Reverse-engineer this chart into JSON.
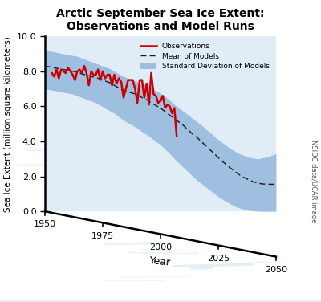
{
  "title_line1": "Arctic September Sea Ice Extent:",
  "title_line2": "Observations and Model Runs",
  "xlabel": "Year",
  "ylabel": "Sea Ice Extent (million square kilometers)",
  "xlim": [
    1950,
    2050
  ],
  "ylim": [
    0.0,
    10.0
  ],
  "yticks": [
    0.0,
    2.0,
    4.0,
    6.0,
    8.0,
    10.0
  ],
  "xticks": [
    1950,
    1975,
    2000,
    2025,
    2050
  ],
  "obs_color": "#cc0000",
  "model_mean_color": "#1a1a1a",
  "model_std_color": "#7ba7d4",
  "model_std_alpha": 0.65,
  "bg_top_color": "#e8f4fc",
  "bg_bottom_color": "#f5faff",
  "watermark_text": "NSIDC data/UCAR image",
  "legend_labels": [
    "Observations",
    "Mean of Models",
    "Standard Deviation of Models"
  ],
  "obs_years": [
    1953,
    1954,
    1955,
    1956,
    1957,
    1958,
    1959,
    1960,
    1961,
    1962,
    1963,
    1964,
    1965,
    1966,
    1967,
    1968,
    1969,
    1970,
    1971,
    1972,
    1973,
    1974,
    1975,
    1976,
    1977,
    1978,
    1979,
    1980,
    1981,
    1982,
    1983,
    1984,
    1985,
    1986,
    1987,
    1988,
    1989,
    1990,
    1991,
    1992,
    1993,
    1994,
    1995,
    1996,
    1997,
    1998,
    1999,
    2000,
    2001,
    2002,
    2003,
    2004,
    2005,
    2006,
    2007
  ],
  "obs_values": [
    7.9,
    7.7,
    8.1,
    7.6,
    8.1,
    8.0,
    7.9,
    8.2,
    8.0,
    7.8,
    7.5,
    8.0,
    8.1,
    7.9,
    8.3,
    7.9,
    7.2,
    8.0,
    7.8,
    7.8,
    8.1,
    7.5,
    8.0,
    7.6,
    7.8,
    7.8,
    7.2,
    7.8,
    7.3,
    7.6,
    7.4,
    6.5,
    7.0,
    7.5,
    7.5,
    7.5,
    7.0,
    6.2,
    7.5,
    7.5,
    6.5,
    7.3,
    6.1,
    7.9,
    6.7,
    6.6,
    6.2,
    6.3,
    6.6,
    5.9,
    6.1,
    6.0,
    5.6,
    5.9,
    4.3
  ],
  "model_years": [
    1950,
    1952,
    1954,
    1956,
    1958,
    1960,
    1962,
    1964,
    1966,
    1968,
    1970,
    1972,
    1974,
    1976,
    1978,
    1980,
    1982,
    1984,
    1986,
    1988,
    1990,
    1992,
    1994,
    1996,
    1998,
    2000,
    2002,
    2004,
    2006,
    2008,
    2010,
    2012,
    2014,
    2016,
    2018,
    2020,
    2022,
    2024,
    2026,
    2028,
    2030,
    2032,
    2034,
    2036,
    2038,
    2040,
    2042,
    2044,
    2046,
    2048,
    2050
  ],
  "model_mean": [
    8.3,
    8.25,
    8.2,
    8.15,
    8.1,
    8.05,
    8.0,
    7.95,
    7.85,
    7.78,
    7.7,
    7.65,
    7.55,
    7.45,
    7.35,
    7.2,
    7.05,
    6.9,
    6.82,
    6.75,
    6.65,
    6.5,
    6.38,
    6.2,
    6.05,
    5.9,
    5.7,
    5.5,
    5.3,
    5.1,
    4.9,
    4.65,
    4.4,
    4.2,
    3.95,
    3.7,
    3.45,
    3.2,
    2.95,
    2.72,
    2.5,
    2.3,
    2.1,
    1.95,
    1.82,
    1.7,
    1.62,
    1.57,
    1.55,
    1.55,
    1.55
  ],
  "model_upper": [
    9.2,
    9.15,
    9.1,
    9.05,
    9.0,
    8.95,
    8.9,
    8.85,
    8.75,
    8.65,
    8.55,
    8.45,
    8.35,
    8.25,
    8.15,
    8.0,
    7.85,
    7.7,
    7.6,
    7.5,
    7.4,
    7.3,
    7.2,
    7.05,
    6.9,
    6.75,
    6.55,
    6.35,
    6.1,
    5.9,
    5.7,
    5.5,
    5.3,
    5.1,
    4.9,
    4.65,
    4.45,
    4.2,
    4.0,
    3.8,
    3.6,
    3.45,
    3.3,
    3.2,
    3.1,
    3.05,
    3.0,
    3.05,
    3.1,
    3.2,
    3.3
  ],
  "model_lower": [
    7.0,
    6.95,
    6.9,
    6.85,
    6.8,
    6.75,
    6.7,
    6.6,
    6.5,
    6.4,
    6.3,
    6.2,
    6.05,
    5.9,
    5.75,
    5.6,
    5.4,
    5.2,
    5.05,
    4.9,
    4.75,
    4.55,
    4.38,
    4.2,
    4.0,
    3.8,
    3.55,
    3.3,
    3.0,
    2.75,
    2.5,
    2.25,
    2.0,
    1.75,
    1.55,
    1.35,
    1.15,
    0.95,
    0.75,
    0.6,
    0.45,
    0.3,
    0.2,
    0.12,
    0.07,
    0.03,
    0.01,
    0.0,
    0.0,
    0.0,
    0.0
  ]
}
